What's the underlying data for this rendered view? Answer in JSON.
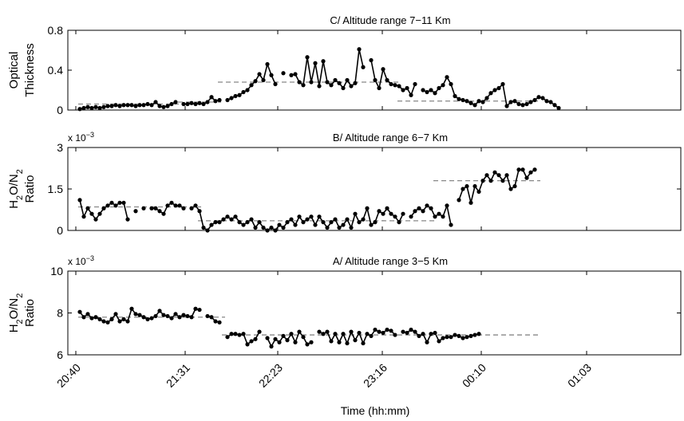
{
  "chart_data": {
    "type": "line",
    "xlabel": "Time (hh:mm)",
    "x_ticks": [
      "20:40",
      "21:31",
      "22:23",
      "23:16",
      "00:10",
      "01:03"
    ],
    "panels": [
      {
        "id": "C",
        "title": "C/ Altitude range 7−11 Km",
        "ylabel_lines": [
          "Optical",
          "Thickness"
        ],
        "ylim": [
          0,
          0.8
        ],
        "yticks": [
          "0",
          "0.4",
          "0.8"
        ],
        "ytick_values": [
          0,
          0.4,
          0.8
        ],
        "exponent": "",
        "segments": [
          {
            "values": [
              0.01,
              0.02,
              0.03,
              0.02,
              0.03,
              0.02,
              0.03,
              0.04,
              0.04,
              0.05,
              0.04,
              0.05,
              0.05,
              0.05,
              0.04,
              0.05,
              0.05,
              0.06,
              0.05,
              0.08,
              0.04,
              0.03,
              0.04,
              0.06,
              0.08
            ]
          },
          {
            "values": [
              0.06,
              0.06,
              0.07,
              0.06,
              0.07,
              0.06,
              0.08,
              0.13,
              0.09,
              0.1
            ]
          },
          {
            "values": [
              0.1,
              0.12,
              0.14,
              0.15,
              0.18,
              0.2,
              0.25,
              0.29,
              0.36,
              0.3,
              0.46,
              0.35,
              0.26
            ]
          },
          {
            "values": [
              0.37
            ]
          },
          {
            "values": [
              0.35,
              0.36,
              0.28,
              0.25,
              0.53,
              0.28,
              0.47,
              0.24,
              0.49,
              0.28,
              0.25,
              0.3,
              0.27,
              0.22,
              0.3,
              0.24,
              0.27,
              0.61,
              0.43
            ]
          },
          {
            "values": [
              0.5,
              0.3,
              0.22,
              0.41,
              0.3,
              0.26,
              0.25,
              0.24,
              0.2,
              0.22,
              0.15,
              0.26
            ]
          },
          {
            "values": [
              0.2,
              0.18,
              0.2,
              0.17,
              0.22,
              0.25,
              0.33,
              0.26,
              0.14,
              0.11,
              0.1,
              0.09,
              0.07,
              0.05,
              0.09,
              0.08,
              0.12,
              0.17,
              0.2,
              0.22,
              0.26,
              0.04,
              0.08,
              0.09,
              0.06,
              0.05,
              0.06,
              0.08,
              0.1,
              0.13,
              0.12,
              0.09,
              0.08,
              0.05,
              0.02
            ]
          }
        ],
        "means": [
          {
            "from": 0,
            "to": 25,
            "value": 0.06
          },
          {
            "from": 25,
            "to": 35,
            "value": 0.08
          },
          {
            "from": 35,
            "to": 80,
            "value": 0.28
          },
          {
            "from": 80,
            "to": 115,
            "value": 0.09
          }
        ]
      },
      {
        "id": "B",
        "title": "B/ Altitude range 6−7 Km",
        "ylabel_lines": [
          "H2O/N2",
          "Ratio"
        ],
        "ylim": [
          0,
          3
        ],
        "yticks": [
          "0",
          "1.5",
          "3"
        ],
        "ytick_values": [
          0,
          1.5,
          3
        ],
        "exponent": "x 10−3",
        "segments": [
          {
            "values": [
              1.1,
              0.5,
              0.8,
              0.6,
              0.4,
              0.6,
              0.8,
              0.9,
              1.0,
              0.9,
              1.0,
              1.0,
              0.4
            ]
          },
          {
            "values": [
              0.7
            ]
          },
          {
            "values": [
              0.8
            ]
          },
          {
            "values": [
              0.8,
              0.8,
              0.7,
              0.6,
              0.9,
              1.0,
              0.9,
              0.9,
              0.8
            ]
          },
          {
            "values": [
              0.8,
              0.9,
              0.7,
              0.1,
              0.0,
              0.2,
              0.3,
              0.3,
              0.4,
              0.5,
              0.4,
              0.5,
              0.3,
              0.2,
              0.3,
              0.4,
              0.1,
              0.3,
              0.1,
              0.0,
              0.1,
              0.0,
              0.2,
              0.1,
              0.3,
              0.4,
              0.2,
              0.5,
              0.3,
              0.4,
              0.5,
              0.2,
              0.5,
              0.3,
              0.1,
              0.3,
              0.4,
              0.1,
              0.2,
              0.4,
              0.1,
              0.6,
              0.3,
              0.4,
              0.8,
              0.2,
              0.3,
              0.7,
              0.6,
              0.8,
              0.6,
              0.5,
              0.3,
              0.6
            ]
          },
          {
            "values": [
              0.5,
              0.7,
              0.8,
              0.7,
              0.9,
              0.8,
              0.5,
              0.6,
              0.5,
              0.9,
              0.2
            ]
          },
          {
            "values": [
              1.1,
              1.5,
              1.6,
              1.0,
              1.6,
              1.4,
              1.8,
              2.0,
              1.8,
              2.1,
              2.0,
              1.8,
              2.0,
              1.5,
              1.6,
              2.2,
              2.2,
              1.9,
              2.1,
              2.2
            ]
          }
        ],
        "means": [
          {
            "from": 0,
            "to": 30,
            "value": 0.85
          },
          {
            "from": 30,
            "to": 76,
            "value": 0.35
          },
          {
            "from": 76,
            "to": 89,
            "value": 0.35
          },
          {
            "from": 89,
            "to": 115,
            "value": 1.8
          }
        ]
      },
      {
        "id": "A",
        "title": "A/ Altitude range 3−5 Km",
        "ylabel_lines": [
          "H2O/N2",
          "Ratio"
        ],
        "ylim": [
          6,
          10
        ],
        "yticks": [
          "6",
          "8",
          "10"
        ],
        "ytick_values": [
          6,
          8,
          10
        ],
        "exponent": "x 10−3",
        "segments": [
          {
            "values": [
              8.05,
              7.8,
              7.95,
              7.75,
              7.8,
              7.7,
              7.6,
              7.55,
              7.7,
              7.95,
              7.6,
              7.7,
              7.6,
              8.2,
              7.95,
              7.9,
              7.8,
              7.7,
              7.75,
              7.85,
              8.1,
              7.9,
              7.85,
              7.75,
              7.95,
              7.8,
              7.9,
              7.85,
              7.8,
              8.2,
              8.15
            ]
          },
          {
            "values": [
              7.85,
              7.8,
              7.6,
              7.55
            ]
          },
          {
            "values": [
              6.85,
              7.0,
              7.0,
              6.95,
              7.0,
              6.5,
              6.65,
              6.75,
              7.1
            ]
          },
          {
            "values": [
              6.8,
              6.4,
              6.75,
              6.6,
              6.9,
              6.7,
              7.0,
              6.6,
              7.1,
              6.85,
              6.5,
              6.6
            ]
          },
          {
            "values": [
              7.1,
              7.0,
              7.1,
              6.65,
              7.0,
              6.6,
              7.0,
              6.55,
              7.1,
              6.7,
              7.05,
              6.55,
              7.0,
              6.9,
              7.2,
              7.1,
              7.05,
              7.2,
              7.15,
              6.95
            ]
          },
          {
            "values": [
              7.1,
              7.05,
              7.2,
              7.1,
              6.9,
              7.0,
              6.6,
              7.0,
              7.05,
              6.65,
              6.8,
              6.85,
              6.85,
              6.95,
              6.9,
              6.8,
              6.85,
              6.9,
              6.95,
              7.0
            ]
          }
        ],
        "means": [
          {
            "from": 0,
            "to": 36,
            "value": 7.8
          },
          {
            "from": 36,
            "to": 115,
            "value": 6.95
          }
        ]
      }
    ]
  }
}
